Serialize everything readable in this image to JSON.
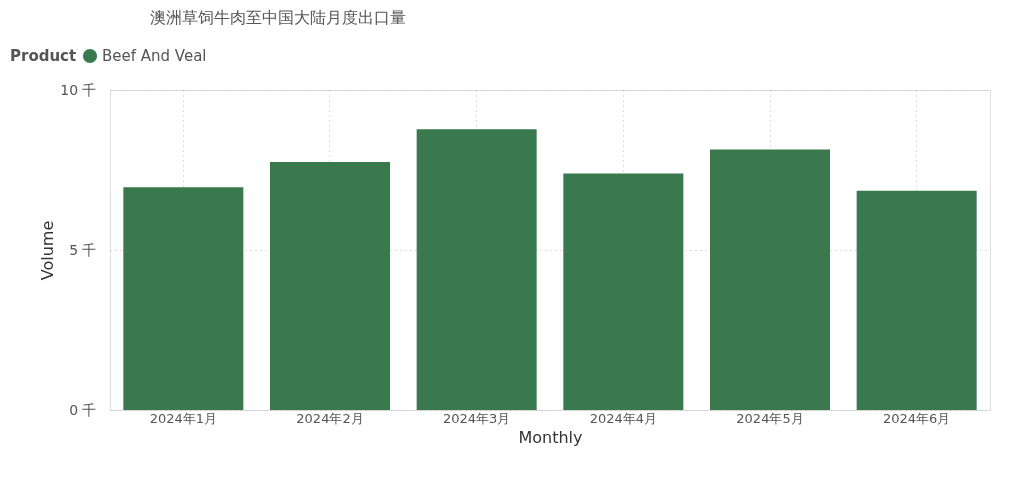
{
  "chart_data": {
    "type": "bar",
    "title": "澳洲草饲牛肉至中国大陆月度出口量",
    "xlabel": "Monthly",
    "ylabel": "Volume",
    "legend_title": "Product",
    "categories": [
      "2024年1月",
      "2024年2月",
      "2024年3月",
      "2024年4月",
      "2024年5月",
      "2024年6月"
    ],
    "series": [
      {
        "name": "Beef And Veal",
        "color": "#3a784e",
        "values": [
          6.96,
          7.75,
          8.77,
          7.39,
          8.14,
          6.85
        ]
      }
    ],
    "ylim": [
      0,
      10
    ],
    "yticks": [
      {
        "value": 0,
        "label": "0 千"
      },
      {
        "value": 5,
        "label": "5 千"
      },
      {
        "value": 10,
        "label": "10 千"
      }
    ],
    "grid": true,
    "legend": "top left"
  }
}
